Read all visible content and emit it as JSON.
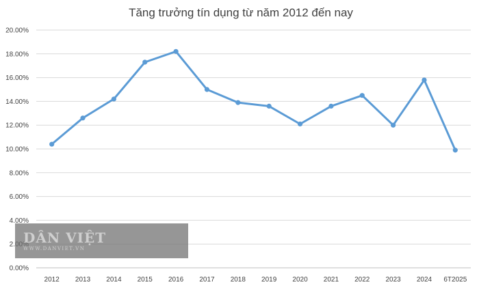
{
  "chart_data": {
    "type": "line",
    "title": "Tăng trưởng tín dụng từ năm 2012 đến nay",
    "categories": [
      "2012",
      "2013",
      "2014",
      "2015",
      "2016",
      "2017",
      "2018",
      "2019",
      "2020",
      "2021",
      "2022",
      "2023",
      "2024",
      "6T2025"
    ],
    "series": [
      {
        "values": [
          10.4,
          12.6,
          14.2,
          17.3,
          18.2,
          15.0,
          13.9,
          13.6,
          12.1,
          13.6,
          14.5,
          12.0,
          15.8,
          9.9
        ],
        "color": "#5b9bd5"
      }
    ],
    "ylim": [
      0,
      20
    ],
    "y_ticks": [
      "0.00%",
      "2.00%",
      "4.00%",
      "6.00%",
      "8.00%",
      "10.00%",
      "12.00%",
      "14.00%",
      "16.00%",
      "18.00%",
      "20.00%"
    ],
    "grid": true,
    "legend": "none"
  },
  "watermark": {
    "name": "DÂN VIỆT",
    "url": "WWW.DANVIET.VN"
  }
}
